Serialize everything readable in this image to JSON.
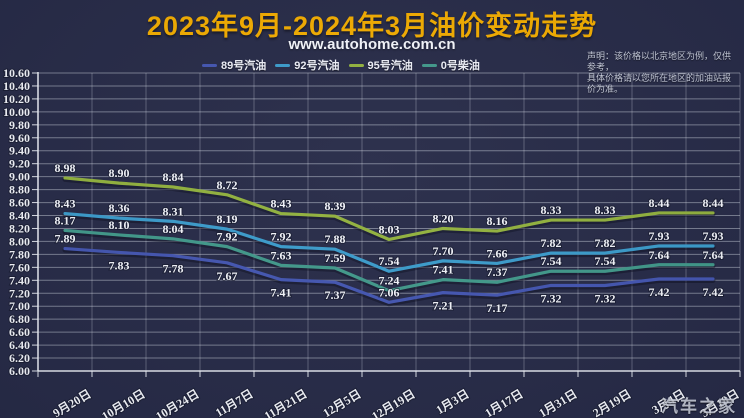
{
  "page": {
    "title": "2023年9月-2024年3月油价变动走势",
    "subtitle": "www.autohome.com.cn",
    "disclaimer_line1": "声明：该价格以北京地区为例，仅供参考，",
    "disclaimer_line2": "具体价格请以您所在地区的加油站报价为准。",
    "watermark": "汽车之家"
  },
  "colors": {
    "background": "#272b48",
    "title": "#f2ac00",
    "text": "#f3f5fb",
    "grid_h": "rgba(234,238,248,0.42)",
    "grid_v": "rgba(234,238,248,0.28)",
    "axis": "rgba(240,243,250,0.9)"
  },
  "chart_data": {
    "type": "line",
    "title": "2023年9月-2024年3月油价变动走势",
    "subtitle": "www.autohome.com.cn",
    "xlabel": "",
    "ylabel": "",
    "ylim": [
      6.0,
      10.6
    ],
    "ystep": 0.2,
    "grid": true,
    "legend_position": "top",
    "categories": [
      "9月20日",
      "10月10日",
      "10月24日",
      "11月7日",
      "11月21日",
      "12月5日",
      "12月19日",
      "1月3日",
      "1月17日",
      "1月31日",
      "2月19日",
      "3月4日",
      "3月18日"
    ],
    "series": [
      {
        "name": "89号汽油",
        "color": "#4456b2",
        "values": [
          7.89,
          7.83,
          7.78,
          7.67,
          7.41,
          7.37,
          7.06,
          7.21,
          7.17,
          7.32,
          7.32,
          7.42,
          7.42
        ],
        "label_side": [
          "above",
          "below",
          "below",
          "below",
          "below",
          "below",
          "above",
          "below",
          "below",
          "below",
          "below",
          "below",
          "below"
        ]
      },
      {
        "name": "92号汽油",
        "color": "#3b9ccc",
        "values": [
          8.43,
          8.36,
          8.31,
          8.19,
          7.92,
          7.88,
          7.54,
          7.7,
          7.66,
          7.82,
          7.82,
          7.93,
          7.93
        ],
        "label_side": [
          "above",
          "above",
          "above",
          "above",
          "above",
          "above",
          "above",
          "above",
          "above",
          "above",
          "above",
          "above",
          "above"
        ]
      },
      {
        "name": "95号汽油",
        "color": "#92b23e",
        "values": [
          8.98,
          8.9,
          8.84,
          8.72,
          8.43,
          8.39,
          8.03,
          8.2,
          8.16,
          8.33,
          8.33,
          8.44,
          8.44
        ],
        "label_side": [
          "above",
          "above",
          "above",
          "above",
          "above",
          "above",
          "above",
          "above",
          "above",
          "above",
          "above",
          "above",
          "above"
        ]
      },
      {
        "name": "0号柴油",
        "color": "#41998b",
        "values": [
          8.17,
          8.1,
          8.04,
          7.92,
          7.63,
          7.59,
          7.24,
          7.41,
          7.37,
          7.54,
          7.54,
          7.64,
          7.64
        ],
        "label_side": [
          "above",
          "above",
          "above",
          "above",
          "above",
          "above",
          "above",
          "above",
          "above",
          "above",
          "above",
          "above",
          "above"
        ]
      }
    ]
  }
}
